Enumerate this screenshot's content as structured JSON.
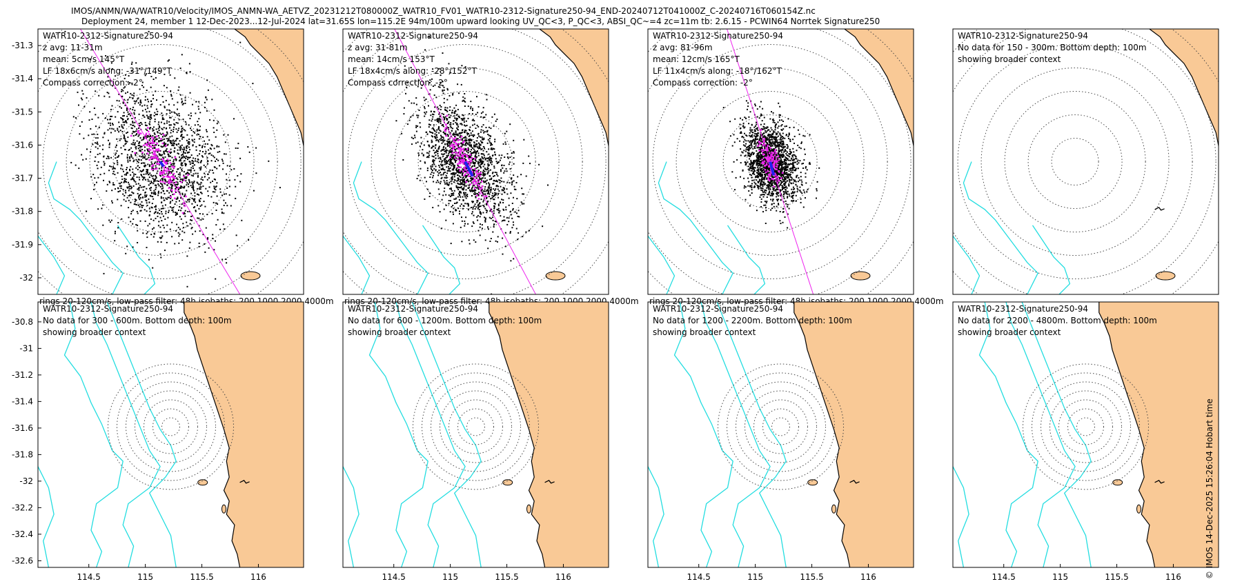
{
  "header": {
    "line1": "IMOS/ANMN/WA/WATR10/Velocity/IMOS_ANMN-WA_AETVZ_20231212T080000Z_WATR10_FV01_WATR10-2312-Signature250-94_END-20240712T041000Z_C-20240716T060154Z.nc",
    "line2": "Deployment 24, member 1 12-Dec-2023...12-Jul-2024 lat=31.65S lon=115.2E 94m/100m upward looking UV_QC<3, P_QC<3, ABSI_QC~=4 zc=11m tb: 2.6.15 - PCWIN64 Norrtek Signature250"
  },
  "footer": "© IMOS 14-Dec-2025 15:26:04 Hobart time",
  "colors": {
    "land": "#f9c996",
    "isobath": "#22dde0",
    "points": "#000000",
    "lowpass": "#ee22ee",
    "mean": "#2222ee",
    "axis_line": "#ee22ee"
  },
  "chart_data": [
    {
      "type": "scatter",
      "title": "WATR10-2312-Signature250-94",
      "info": [
        "z avg: 11-31m",
        "mean: 5cm/s 145°T",
        "LF 18x6cm/s along: -31°/149°T",
        "Compass correction: -2°"
      ],
      "caption": "rings 20-120cm/s, low-pass filter: 48h isobaths: 200 1000 2000 4000m",
      "ring_center": [
        115.2,
        -31.65
      ],
      "rings_cms": [
        20,
        40,
        60,
        80,
        100,
        120
      ],
      "xlim": [
        114.05,
        116.4
      ],
      "ylim": [
        -32.05,
        -31.25
      ],
      "yticks": [
        -31.3,
        -31.4,
        -31.5,
        -31.6,
        -31.7,
        -31.8,
        -31.9,
        -32
      ],
      "ytick_labels": [
        "-31.3",
        "-31.4",
        "-31.5",
        "-31.6",
        "-31.7",
        "-31.8",
        "-31.9",
        "-32"
      ],
      "spread": {
        "major_cms": 62,
        "minor_cms": 48,
        "axis_deg_true": 149
      },
      "lf_spread": {
        "major_cms": 18,
        "minor_cms": 6
      },
      "mean": {
        "speed_cms": 5,
        "dir_deg_true": 145
      },
      "axis_deg_true": 149
    },
    {
      "type": "scatter",
      "title": "WATR10-2312-Signature250-94",
      "info": [
        "z avg: 31-81m",
        "mean: 14cm/s 153°T",
        "LF 18x4cm/s along: -28°/152°T",
        "Compass correction: -2°"
      ],
      "caption": "rings 20-120cm/s, low-pass filter: 48h isobaths: 200 1000 2000 4000m",
      "ring_center": [
        115.2,
        -31.65
      ],
      "rings_cms": [
        20,
        40,
        60,
        80,
        100,
        120
      ],
      "xlim": [
        114.05,
        116.4
      ],
      "ylim": [
        -32.05,
        -31.25
      ],
      "spread": {
        "major_cms": 55,
        "minor_cms": 28,
        "axis_deg_true": 152
      },
      "lf_spread": {
        "major_cms": 18,
        "minor_cms": 4
      },
      "mean": {
        "speed_cms": 14,
        "dir_deg_true": 153
      },
      "axis_deg_true": 152
    },
    {
      "type": "scatter",
      "title": "WATR10-2312-Signature250-94",
      "info": [
        "z avg: 81-96m",
        "mean: 12cm/s 165°T",
        "LF 11x4cm/s along: -18°/162°T",
        "Compass correction: -2°"
      ],
      "caption": "rings 20-120cm/s, low-pass filter: 48h isobaths: 200 1000 2000 4000m",
      "ring_center": [
        115.2,
        -31.65
      ],
      "rings_cms": [
        20,
        40,
        60,
        80,
        100,
        120
      ],
      "xlim": [
        114.05,
        116.4
      ],
      "ylim": [
        -32.05,
        -31.25
      ],
      "spread": {
        "major_cms": 32,
        "minor_cms": 20,
        "axis_deg_true": 162
      },
      "lf_spread": {
        "major_cms": 11,
        "minor_cms": 4
      },
      "mean": {
        "speed_cms": 12,
        "dir_deg_true": 165
      },
      "axis_deg_true": 162
    },
    {
      "type": "map",
      "title": "WATR10-2312-Signature250-94",
      "info": [
        "No data for 150 - 300m. Bottom depth: 100m",
        "showing broader context"
      ],
      "ring_center": [
        115.2,
        -31.65
      ],
      "xlim": [
        114.05,
        116.4
      ],
      "ylim": [
        -32.05,
        -31.25
      ]
    },
    {
      "type": "map",
      "title": "WATR10-2312-Signature250-94",
      "info": [
        "No data for 300 - 600m. Bottom depth: 100m",
        "showing broader context"
      ],
      "ring_center": [
        115.2,
        -31.65
      ],
      "xlim": [
        114.05,
        116.4
      ],
      "ylim": [
        -32.65,
        -30.65
      ],
      "yticks": [
        -30.8,
        -31,
        -31.2,
        -31.4,
        -31.6,
        -31.8,
        -32,
        -32.2,
        -32.4,
        -32.6
      ],
      "ytick_labels": [
        "-30.8",
        "-31",
        "-31.2",
        "-31.4",
        "-31.6",
        "-31.8",
        "-32",
        "-32.2",
        "-32.4",
        "-32.6"
      ],
      "xticks": [
        114.5,
        115,
        115.5,
        116
      ],
      "xtick_labels": [
        "114.5",
        "115",
        "115.5",
        "116"
      ]
    },
    {
      "type": "map",
      "title": "WATR10-2312-Signature250-94",
      "info": [
        "No data for 600 - 1200m. Bottom depth: 100m",
        "showing broader context"
      ],
      "ring_center": [
        115.2,
        -31.65
      ],
      "xlim": [
        114.05,
        116.4
      ],
      "ylim": [
        -32.65,
        -30.65
      ],
      "xticks": [
        114.5,
        115,
        115.5,
        116
      ],
      "xtick_labels": [
        "114.5",
        "115",
        "115.5",
        "116"
      ]
    },
    {
      "type": "map",
      "title": "WATR10-2312-Signature250-94",
      "info": [
        "No data for 1200 - 2200m. Bottom depth: 100m",
        "showing broader context"
      ],
      "ring_center": [
        115.2,
        -31.65
      ],
      "xlim": [
        114.05,
        116.4
      ],
      "ylim": [
        -32.65,
        -30.65
      ],
      "xticks": [
        114.5,
        115,
        115.5,
        116
      ],
      "xtick_labels": [
        "114.5",
        "115",
        "115.5",
        "116"
      ]
    },
    {
      "type": "map",
      "title": "WATR10-2312-Signature250-94",
      "info": [
        "No data for 2200 - 4800m. Bottom depth: 100m",
        "showing broader context"
      ],
      "ring_center": [
        115.2,
        -31.65
      ],
      "xlim": [
        114.05,
        116.4
      ],
      "ylim": [
        -32.65,
        -30.65
      ],
      "xticks": [
        114.5,
        115,
        115.5,
        116
      ],
      "xtick_labels": [
        "114.5",
        "115",
        "115.5",
        "116"
      ]
    }
  ]
}
